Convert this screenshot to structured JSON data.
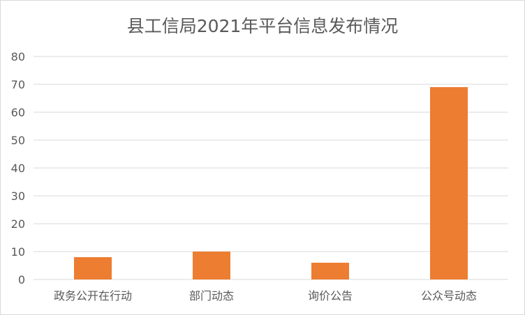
{
  "chart_data": {
    "type": "bar",
    "title": "县工信局2021年平台信息发布情况",
    "categories": [
      "政务公开在行动",
      "部门动态",
      "询价公告",
      "公众号动态"
    ],
    "values": [
      8,
      10,
      6,
      69
    ],
    "xlabel": "",
    "ylabel": "",
    "ylim": [
      0,
      80
    ],
    "yticks": [
      0,
      10,
      20,
      30,
      40,
      50,
      60,
      70,
      80
    ],
    "grid": true,
    "legend": "none",
    "bar_color": "#ed7d31",
    "grid_color": "#d9d9d9"
  }
}
